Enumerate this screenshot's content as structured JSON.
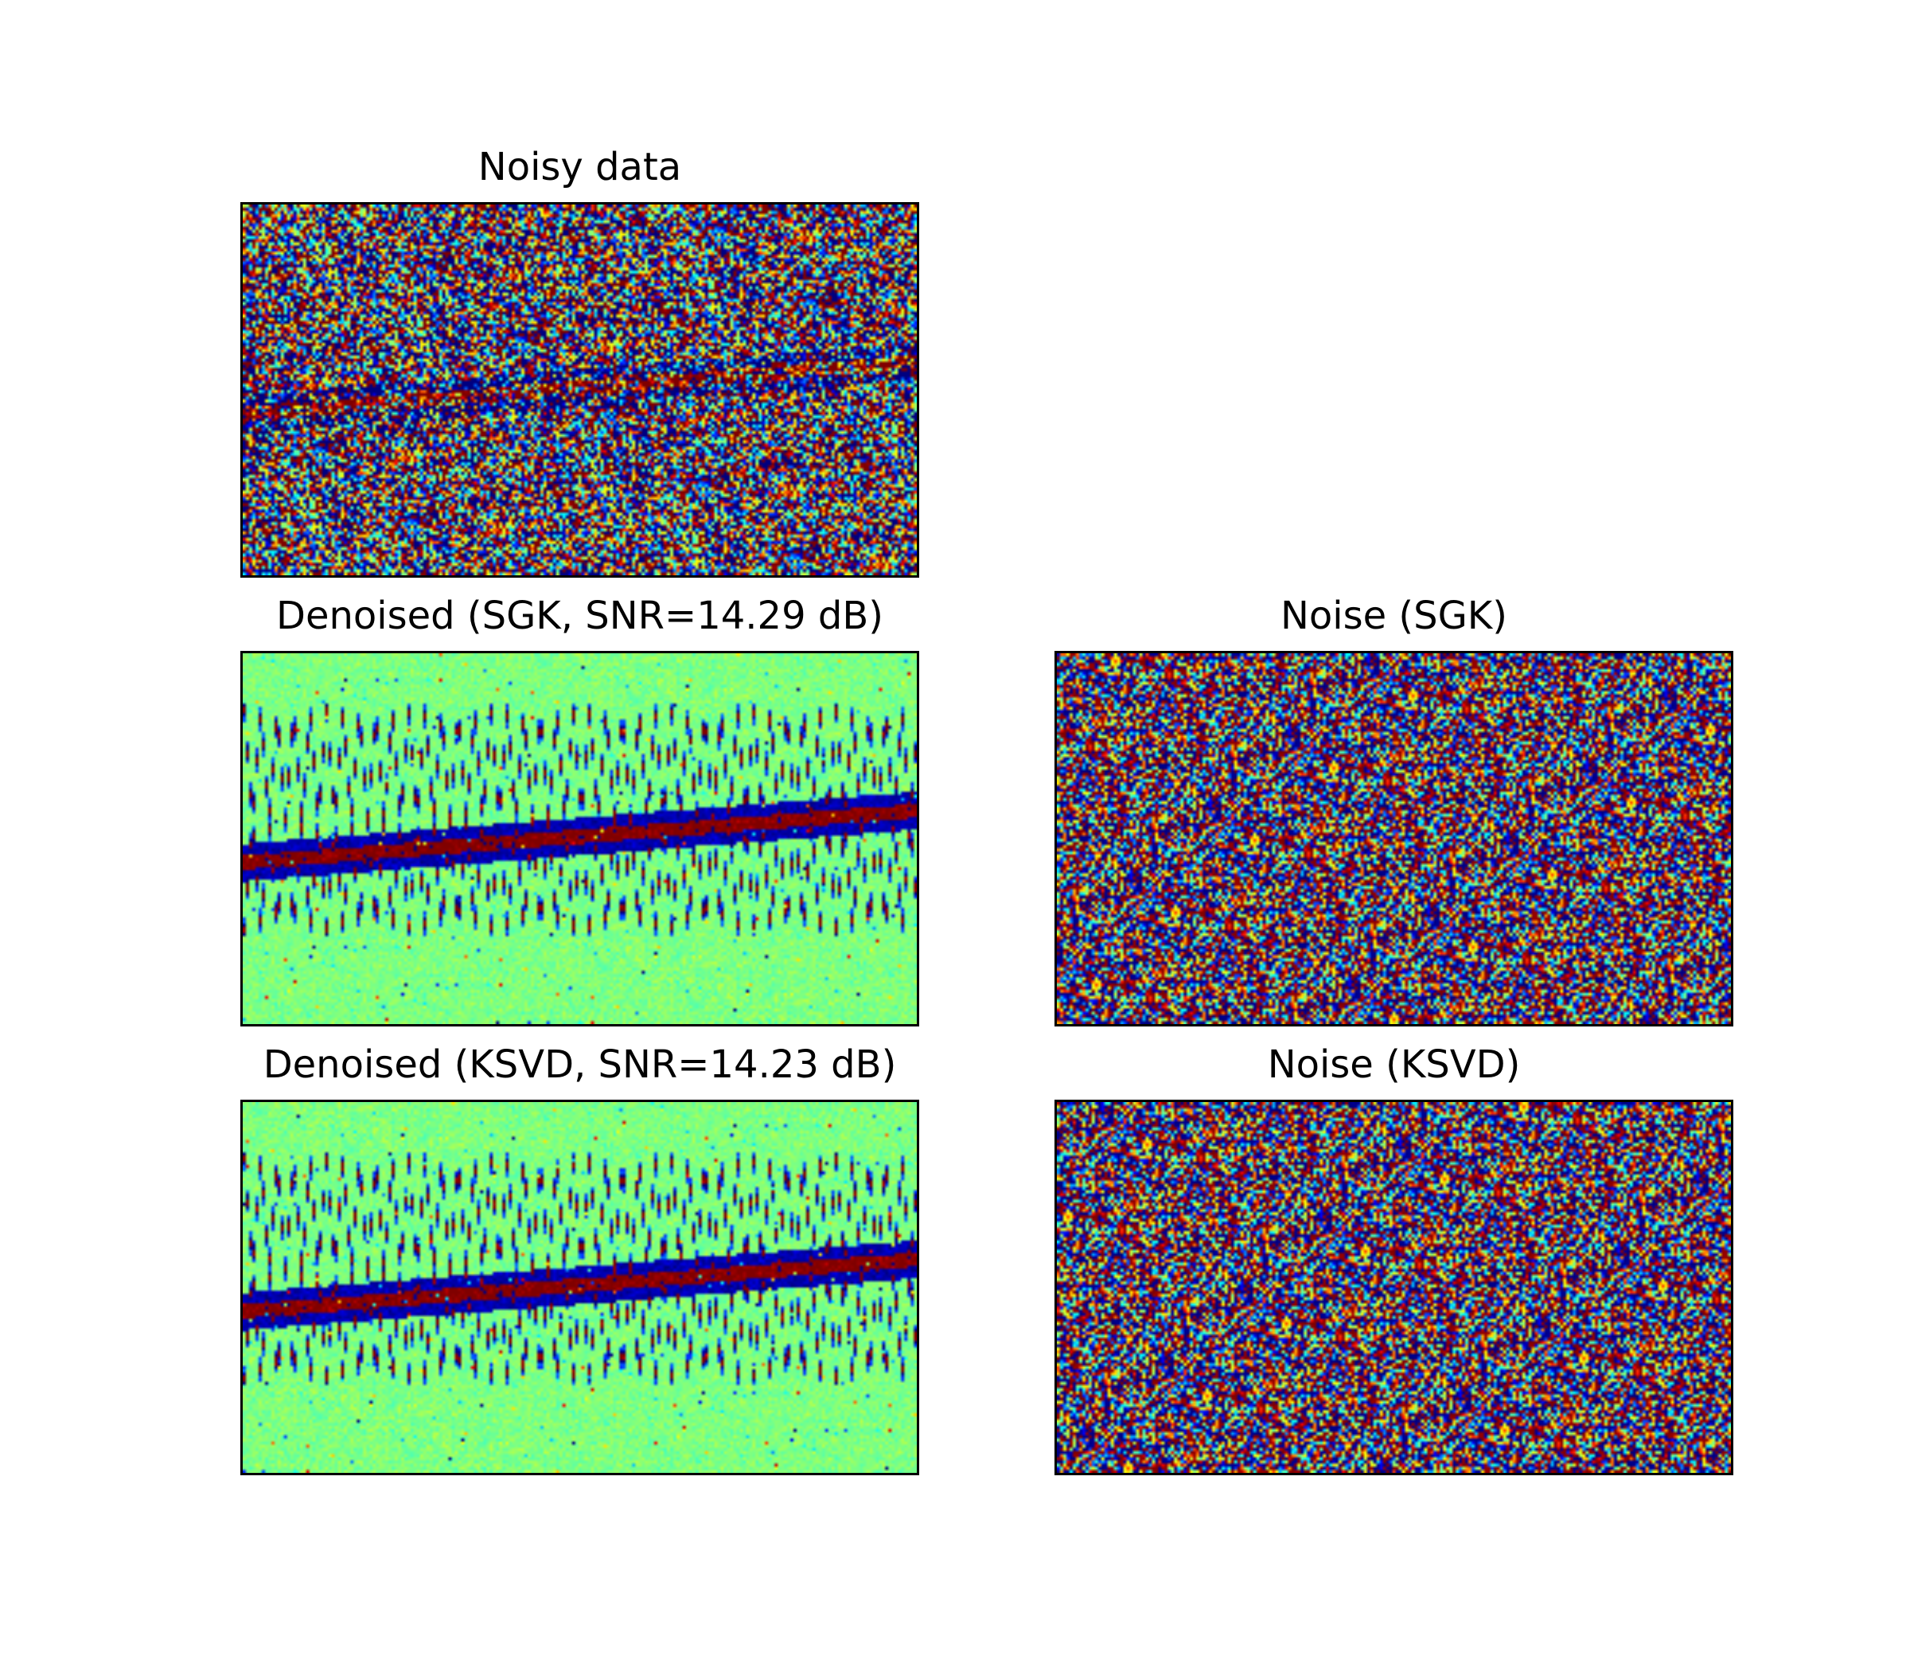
{
  "figure": {
    "colormap": "jet",
    "background": "#ffffff",
    "panels": [
      {
        "id": "noisy",
        "title": "Noisy data",
        "kind": "noisy"
      },
      {
        "id": "denoised-sgk",
        "title": "Denoised (SGK, SNR=14.29 dB)",
        "kind": "denoised"
      },
      {
        "id": "noise-sgk",
        "title": "Noise (SGK)",
        "kind": "noise"
      },
      {
        "id": "denoised-ksvd",
        "title": "Denoised (KSVD, SNR=14.23 dB)",
        "kind": "denoised"
      },
      {
        "id": "noise-ksvd",
        "title": "Noise (KSVD)",
        "kind": "noise"
      }
    ]
  },
  "chart_data": [
    {
      "type": "heatmap",
      "title": "Noisy data",
      "colormap": "jet",
      "axes": "off"
    },
    {
      "type": "heatmap",
      "title": "Denoised (SGK, SNR=14.29 dB)",
      "snr_db": 14.29,
      "method": "SGK",
      "colormap": "jet",
      "axes": "off"
    },
    {
      "type": "heatmap",
      "title": "Noise (SGK)",
      "method": "SGK",
      "colormap": "jet",
      "axes": "off"
    },
    {
      "type": "heatmap",
      "title": "Denoised (KSVD, SNR=14.23 dB)",
      "snr_db": 14.23,
      "method": "KSVD",
      "colormap": "jet",
      "axes": "off"
    },
    {
      "type": "heatmap",
      "title": "Noise (KSVD)",
      "method": "KSVD",
      "colormap": "jet",
      "axes": "off"
    }
  ]
}
